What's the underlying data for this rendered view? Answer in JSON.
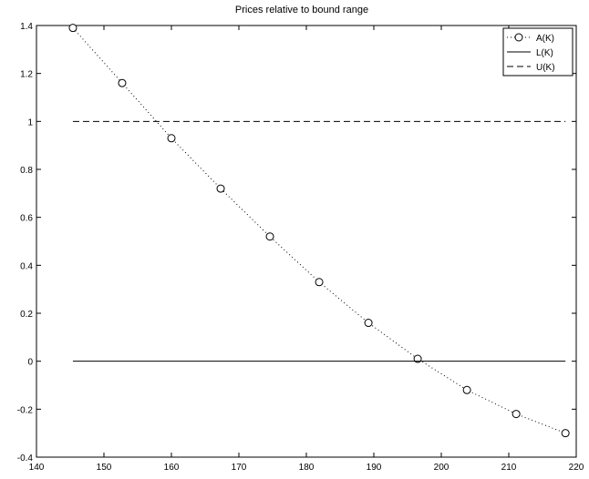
{
  "chart_data": {
    "type": "line",
    "title": "Prices relative to bound range",
    "xlabel": "",
    "ylabel": "",
    "xlim": [
      140,
      220
    ],
    "ylim": [
      -0.4,
      1.4
    ],
    "xticks": [
      140,
      150,
      160,
      170,
      180,
      190,
      200,
      210,
      220
    ],
    "yticks": [
      -0.4,
      -0.2,
      0,
      0.2,
      0.4,
      0.6,
      0.8,
      1,
      1.2,
      1.4
    ],
    "xtick_labels": [
      "140",
      "150",
      "160",
      "170",
      "180",
      "190",
      "200",
      "210",
      "220"
    ],
    "ytick_labels": [
      "-0.4",
      "-0.2",
      "0",
      "0.2",
      "0.4",
      "0.6",
      "0.8",
      "1",
      "1.2",
      "1.4"
    ],
    "grid": false,
    "legend_position": "top-right",
    "series": [
      {
        "name": "A(K)",
        "style": "dotted-circles",
        "x": [
          145.4,
          152.7,
          160.0,
          167.3,
          174.6,
          181.9,
          189.2,
          196.5,
          203.8,
          211.1,
          218.4
        ],
        "y": [
          1.39,
          1.16,
          0.93,
          0.72,
          0.52,
          0.33,
          0.16,
          0.01,
          -0.12,
          -0.22,
          -0.3
        ]
      },
      {
        "name": "L(K)",
        "style": "solid",
        "x": [
          145.4,
          218.4
        ],
        "y": [
          0,
          0
        ]
      },
      {
        "name": "U(K)",
        "style": "dashed",
        "x": [
          145.4,
          218.4
        ],
        "y": [
          1,
          1
        ]
      }
    ],
    "colors": {
      "line": "#000000",
      "background": "#ffffff"
    }
  }
}
